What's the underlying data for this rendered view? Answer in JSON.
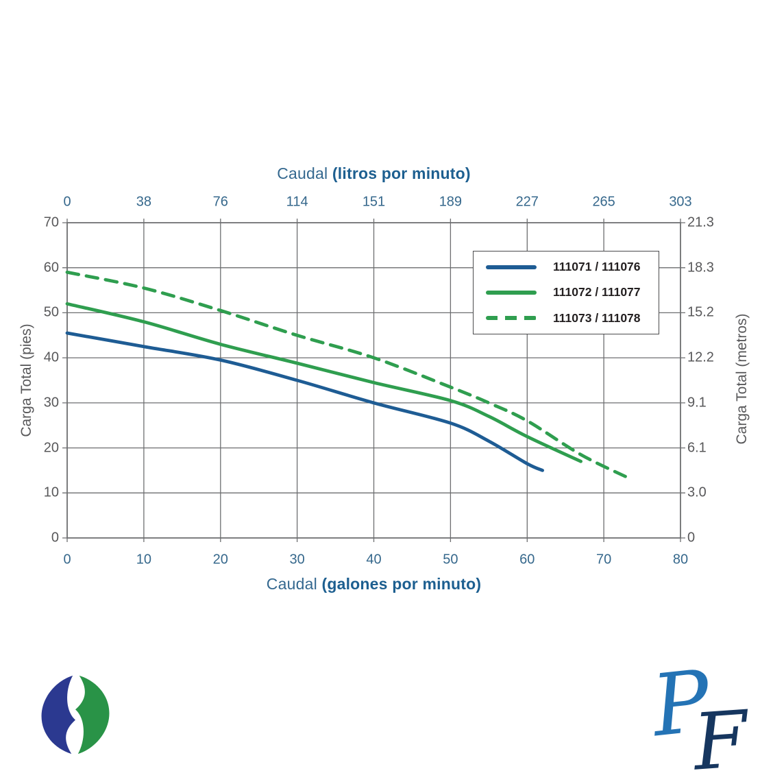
{
  "chart_data": {
    "type": "line",
    "title_top": {
      "regular": "Caudal ",
      "bold": "(litros por minuto)"
    },
    "title_bottom": {
      "regular": "Caudal ",
      "bold": "(galones por minuto)"
    },
    "axis_top": {
      "ticks": [
        "0",
        "38",
        "76",
        "114",
        "151",
        "189",
        "227",
        "265",
        "303"
      ]
    },
    "axis_bottom": {
      "ticks": [
        0,
        10,
        20,
        30,
        40,
        50,
        60,
        70,
        80
      ],
      "range": [
        0,
        80
      ]
    },
    "axis_left": {
      "title": "Carga Total (pies)",
      "ticks": [
        0,
        10,
        20,
        30,
        40,
        50,
        60,
        70
      ],
      "range": [
        0,
        70
      ]
    },
    "axis_right": {
      "title": "Carga Total (metros)",
      "ticks": [
        "0",
        "3.0",
        "6.1",
        "9.1",
        "12.2",
        "15.2",
        "18.3",
        "21.3"
      ]
    },
    "grid": true,
    "legend": {
      "position": "top-right",
      "entries": [
        {
          "label": "111071 / 111076",
          "color": "#1e5c94",
          "dash": "solid"
        },
        {
          "label": "111072 / 111077",
          "color": "#2f9e4f",
          "dash": "solid"
        },
        {
          "label": "111073 / 111078",
          "color": "#2f9e4f",
          "dash": "dashed"
        }
      ]
    },
    "series": [
      {
        "name": "111071 / 111076",
        "color": "#1e5c94",
        "dash": "solid",
        "points": [
          [
            0,
            45.5
          ],
          [
            10,
            42.5
          ],
          [
            20,
            39.5
          ],
          [
            30,
            35
          ],
          [
            40,
            30
          ],
          [
            50,
            25.5
          ],
          [
            55,
            21.5
          ],
          [
            60,
            16.5
          ],
          [
            62,
            15
          ]
        ]
      },
      {
        "name": "111072 / 111077",
        "color": "#2f9e4f",
        "dash": "solid",
        "points": [
          [
            0,
            52
          ],
          [
            10,
            48
          ],
          [
            20,
            43
          ],
          [
            30,
            38.8
          ],
          [
            40,
            34.5
          ],
          [
            50,
            30.5
          ],
          [
            55,
            27
          ],
          [
            60,
            22.5
          ],
          [
            67,
            17
          ]
        ]
      },
      {
        "name": "111073 / 111078",
        "color": "#2f9e4f",
        "dash": "dashed",
        "points": [
          [
            0,
            59
          ],
          [
            10,
            55.5
          ],
          [
            20,
            50.5
          ],
          [
            30,
            45
          ],
          [
            40,
            40
          ],
          [
            50,
            33.5
          ],
          [
            55,
            30
          ],
          [
            60,
            26
          ],
          [
            67,
            18.5
          ],
          [
            73,
            13.5
          ]
        ]
      }
    ]
  },
  "colors": {
    "curve_blue": "#1e5c94",
    "curve_green": "#2f9e4f",
    "grid": "#6d6e70",
    "tick_blue": "#36688c",
    "tick_gray": "#58585a",
    "title_blue_regular": "#34688f",
    "title_blue_bold": "#1d5f90",
    "legend_text": "#231f20",
    "legend_border": "#4a4a4c"
  },
  "logos": {
    "left": {
      "name": "dual-swoosh-leaf-logo",
      "blue": "#2b3990",
      "green": "#299347"
    },
    "right": {
      "name": "pf-script-monogram",
      "letter1": "P",
      "letter2": "F",
      "light_blue": "#2473b5",
      "dark_blue": "#16365f"
    }
  }
}
